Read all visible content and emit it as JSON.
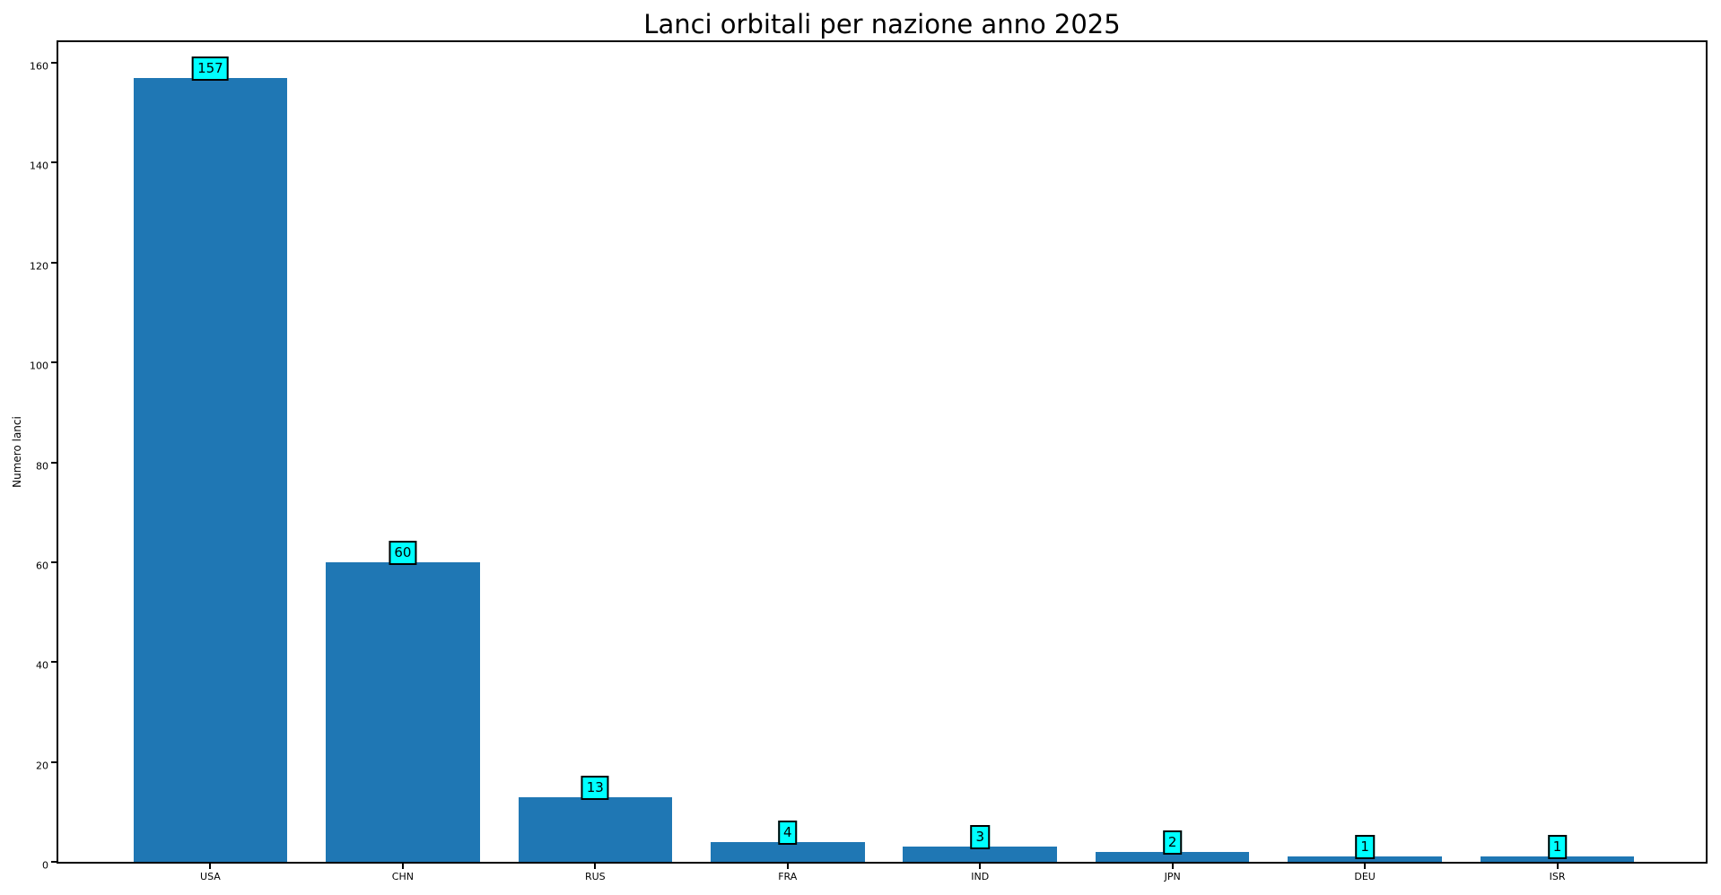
{
  "figure": {
    "background": "#ffffff"
  },
  "chart_data": {
    "type": "bar",
    "title": "Lanci orbitali per nazione anno 2025",
    "xlabel": "",
    "ylabel": "Numero lanci",
    "categories": [
      "USA",
      "CHN",
      "RUS",
      "FRA",
      "IND",
      "JPN",
      "DEU",
      "ISR"
    ],
    "values": [
      157,
      60,
      13,
      4,
      3,
      2,
      1,
      1
    ],
    "value_labels": [
      "157",
      "60",
      "13",
      "4",
      "3",
      "2",
      "1",
      "1"
    ],
    "yticks": [
      0,
      20,
      40,
      60,
      80,
      100,
      120,
      140,
      160
    ],
    "ylim": [
      0,
      164.85
    ],
    "grid": false,
    "legend_position": "none",
    "bar_color": "#1f77b4",
    "annotation_bg_color": "#00ffff",
    "annotation_border_color": "#000000",
    "axis_color": "#000000",
    "text_color": "#000000"
  }
}
